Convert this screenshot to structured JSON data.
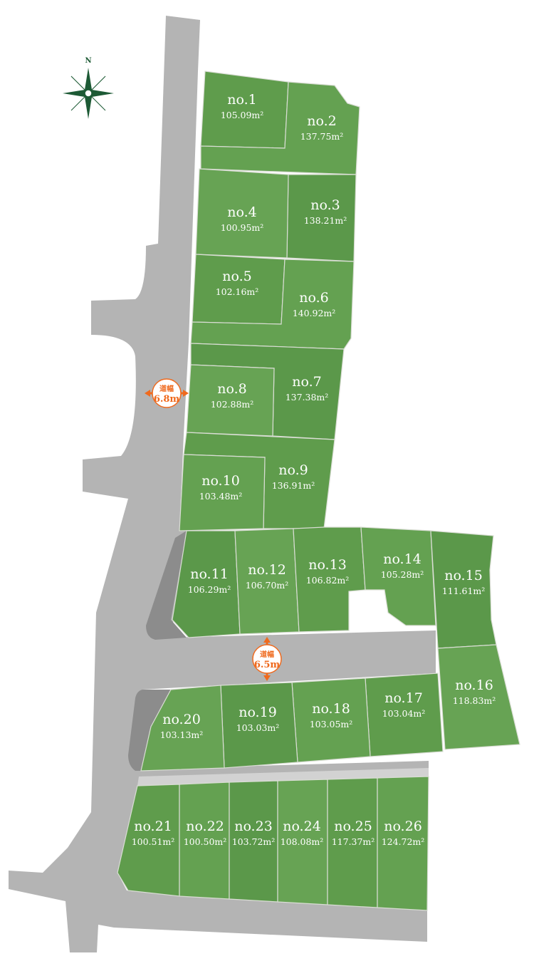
{
  "compass": {
    "north_label": "N",
    "icon": "compass-rose-icon",
    "color": "#1d5a35"
  },
  "road_widths": [
    {
      "label": "道幅",
      "value": "6.8m"
    },
    {
      "label": "道幅",
      "value": "6.5m"
    }
  ],
  "colors": {
    "lot": "#62a050",
    "road": "#b4b4b4",
    "road_dark": "#8c8c8c",
    "marker": "#ef6a1e"
  },
  "lots": [
    {
      "no": "no.1",
      "area": "105.09m²"
    },
    {
      "no": "no.2",
      "area": "137.75m²"
    },
    {
      "no": "no.3",
      "area": "138.21m²"
    },
    {
      "no": "no.4",
      "area": "100.95m²"
    },
    {
      "no": "no.5",
      "area": "102.16m²"
    },
    {
      "no": "no.6",
      "area": "140.92m²"
    },
    {
      "no": "no.7",
      "area": "137.38m²"
    },
    {
      "no": "no.8",
      "area": "102.88m²"
    },
    {
      "no": "no.9",
      "area": "136.91m²"
    },
    {
      "no": "no.10",
      "area": "103.48m²"
    },
    {
      "no": "no.11",
      "area": "106.29m²"
    },
    {
      "no": "no.12",
      "area": "106.70m²"
    },
    {
      "no": "no.13",
      "area": "106.82m²"
    },
    {
      "no": "no.14",
      "area": "105.28m²"
    },
    {
      "no": "no.15",
      "area": "111.61m²"
    },
    {
      "no": "no.16",
      "area": "118.83m²"
    },
    {
      "no": "no.17",
      "area": "103.04m²"
    },
    {
      "no": "no.18",
      "area": "103.05m²"
    },
    {
      "no": "no.19",
      "area": "103.03m²"
    },
    {
      "no": "no.20",
      "area": "103.13m²"
    },
    {
      "no": "no.21",
      "area": "100.51m²"
    },
    {
      "no": "no.22",
      "area": "100.50m²"
    },
    {
      "no": "no.23",
      "area": "103.72m²"
    },
    {
      "no": "no.24",
      "area": "108.08m²"
    },
    {
      "no": "no.25",
      "area": "117.37m²"
    },
    {
      "no": "no.26",
      "area": "124.72m²"
    }
  ]
}
